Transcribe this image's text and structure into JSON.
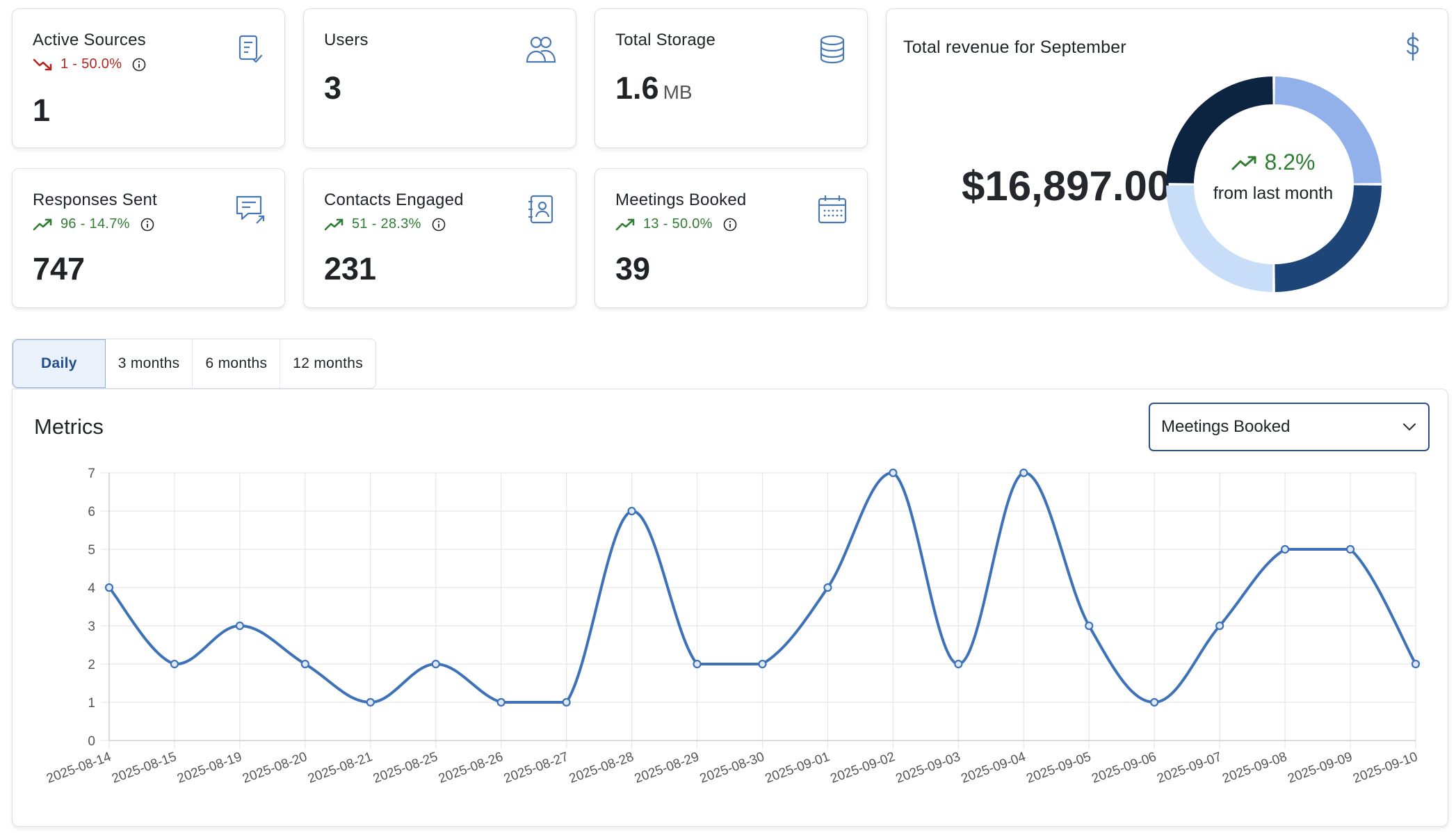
{
  "stats": [
    {
      "title": "Active Sources",
      "trend": "1 - 50.0%",
      "trend_dir": "down",
      "value": "1",
      "unit": "",
      "icon": "checklist-icon"
    },
    {
      "title": "Users",
      "trend": "",
      "trend_dir": "",
      "value": "3",
      "unit": "",
      "icon": "users-icon"
    },
    {
      "title": "Total Storage",
      "trend": "",
      "trend_dir": "",
      "value": "1.6",
      "unit": "MB",
      "icon": "database-icon"
    },
    {
      "title": "Responses Sent",
      "trend": "96 - 14.7%",
      "trend_dir": "up",
      "value": "747",
      "unit": "",
      "icon": "message-reply-icon"
    },
    {
      "title": "Contacts Engaged",
      "trend": "51 - 28.3%",
      "trend_dir": "up",
      "value": "231",
      "unit": "",
      "icon": "contact-book-icon"
    },
    {
      "title": "Meetings Booked",
      "trend": "13 - 50.0%",
      "trend_dir": "up",
      "value": "39",
      "unit": "",
      "icon": "calendar-icon"
    }
  ],
  "revenue": {
    "title": "Total revenue for September",
    "amount": "$16,897.00",
    "change": "8.2%",
    "change_label": "from last month",
    "donut_segments": [
      {
        "value": 25,
        "color": "#92b0ea"
      },
      {
        "value": 25,
        "color": "#1e4577"
      },
      {
        "value": 25,
        "color": "#c8ddf7"
      },
      {
        "value": 25,
        "color": "#0d2440"
      }
    ]
  },
  "tabs": [
    {
      "label": "Daily",
      "active": true
    },
    {
      "label": "3 months",
      "active": false
    },
    {
      "label": "6 months",
      "active": false
    },
    {
      "label": "12 months",
      "active": false
    }
  ],
  "metrics": {
    "title": "Metrics",
    "selected": "Meetings Booked"
  },
  "colors": {
    "line": "#3d72b8",
    "grid": "#e6e6e6",
    "up": "#2f7d32",
    "down": "#b3261e",
    "icon": "#4a78b5"
  },
  "chart_data": {
    "type": "line",
    "x": [
      "2025-08-14",
      "2025-08-15",
      "2025-08-19",
      "2025-08-20",
      "2025-08-21",
      "2025-08-25",
      "2025-08-26",
      "2025-08-27",
      "2025-08-28",
      "2025-08-29",
      "2025-08-30",
      "2025-09-01",
      "2025-09-02",
      "2025-09-03",
      "2025-09-04",
      "2025-09-05",
      "2025-09-06",
      "2025-09-07",
      "2025-09-08",
      "2025-09-09",
      "2025-09-10"
    ],
    "series": [
      {
        "values": [
          4,
          2,
          3,
          2,
          1,
          2,
          1,
          1,
          6,
          2,
          2,
          4,
          7,
          2,
          7,
          3,
          1,
          3,
          5,
          5,
          2
        ]
      }
    ],
    "ylim": [
      0,
      7
    ],
    "yticks": [
      "0",
      "1",
      "2",
      "3",
      "4",
      "5",
      "6",
      "7"
    ],
    "grid": true
  }
}
